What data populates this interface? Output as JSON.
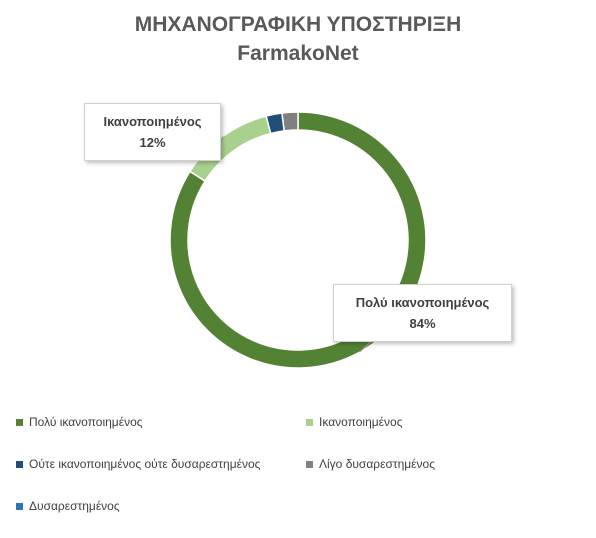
{
  "title": {
    "line1": "ΜΗΧΑΝΟΓΡΑΦΙΚΗ ΥΠΟΣΤΗΡΙΞΗ",
    "line2": "FarmakoNet"
  },
  "chart_data": {
    "type": "pie",
    "variant": "doughnut",
    "categories": [
      "Πολύ ικανοποιημένος",
      "Ικανοποιημένος",
      "Ούτε ικανοποιημένος ούτε δυσαρεστημένος",
      "Λίγο δυσαρεστημένος",
      "Δυσαρεστημένος"
    ],
    "values": [
      84,
      12,
      2,
      2,
      0
    ],
    "colors": [
      "#548235",
      "#a9d18e",
      "#1f4e79",
      "#808080",
      "#2e75b6"
    ],
    "data_labels": [
      {
        "index": 0,
        "name": "Πολύ ικανοποιημένος",
        "value": "84%"
      },
      {
        "index": 1,
        "name": "Ικανοποιημένος",
        "value": "12%"
      }
    ],
    "legend_position": "bottom"
  }
}
